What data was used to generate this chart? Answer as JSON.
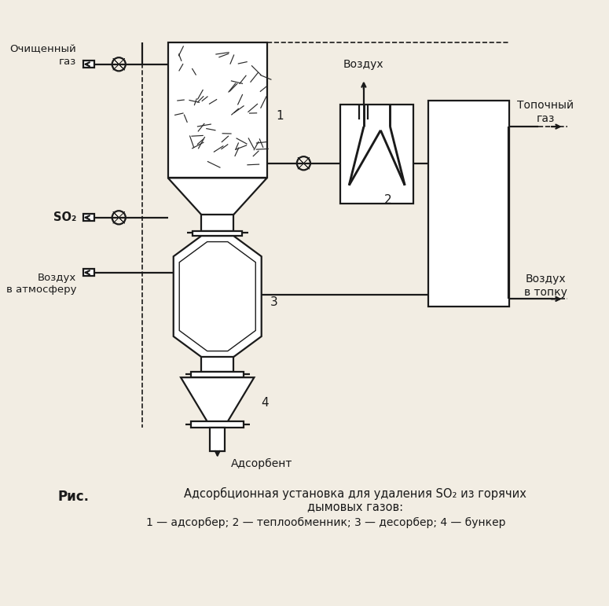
{
  "bg_color": "#f2ede3",
  "line_color": "#1a1a1a",
  "title_line1": "Адсорбционная установка для удаления SO₂ из горячих",
  "title_line2": "дымовых газов:",
  "caption": "1 — адсорбер; 2 — теплообменник; 3 — десорбер; 4 — бункер",
  "label_ric": "Рис.",
  "lbl_ochistenny": "Очищенный\nгаз",
  "lbl_vozduh": "Воздух",
  "lbl_topochny": "Топочный\nгаз",
  "lbl_so2": "SO₂",
  "lbl_vozduh_atm": "Воздух\nв атмосферу",
  "lbl_vozduh_topku": "Воздух\nв топку",
  "lbl_adsorbent": "Адсорбент"
}
